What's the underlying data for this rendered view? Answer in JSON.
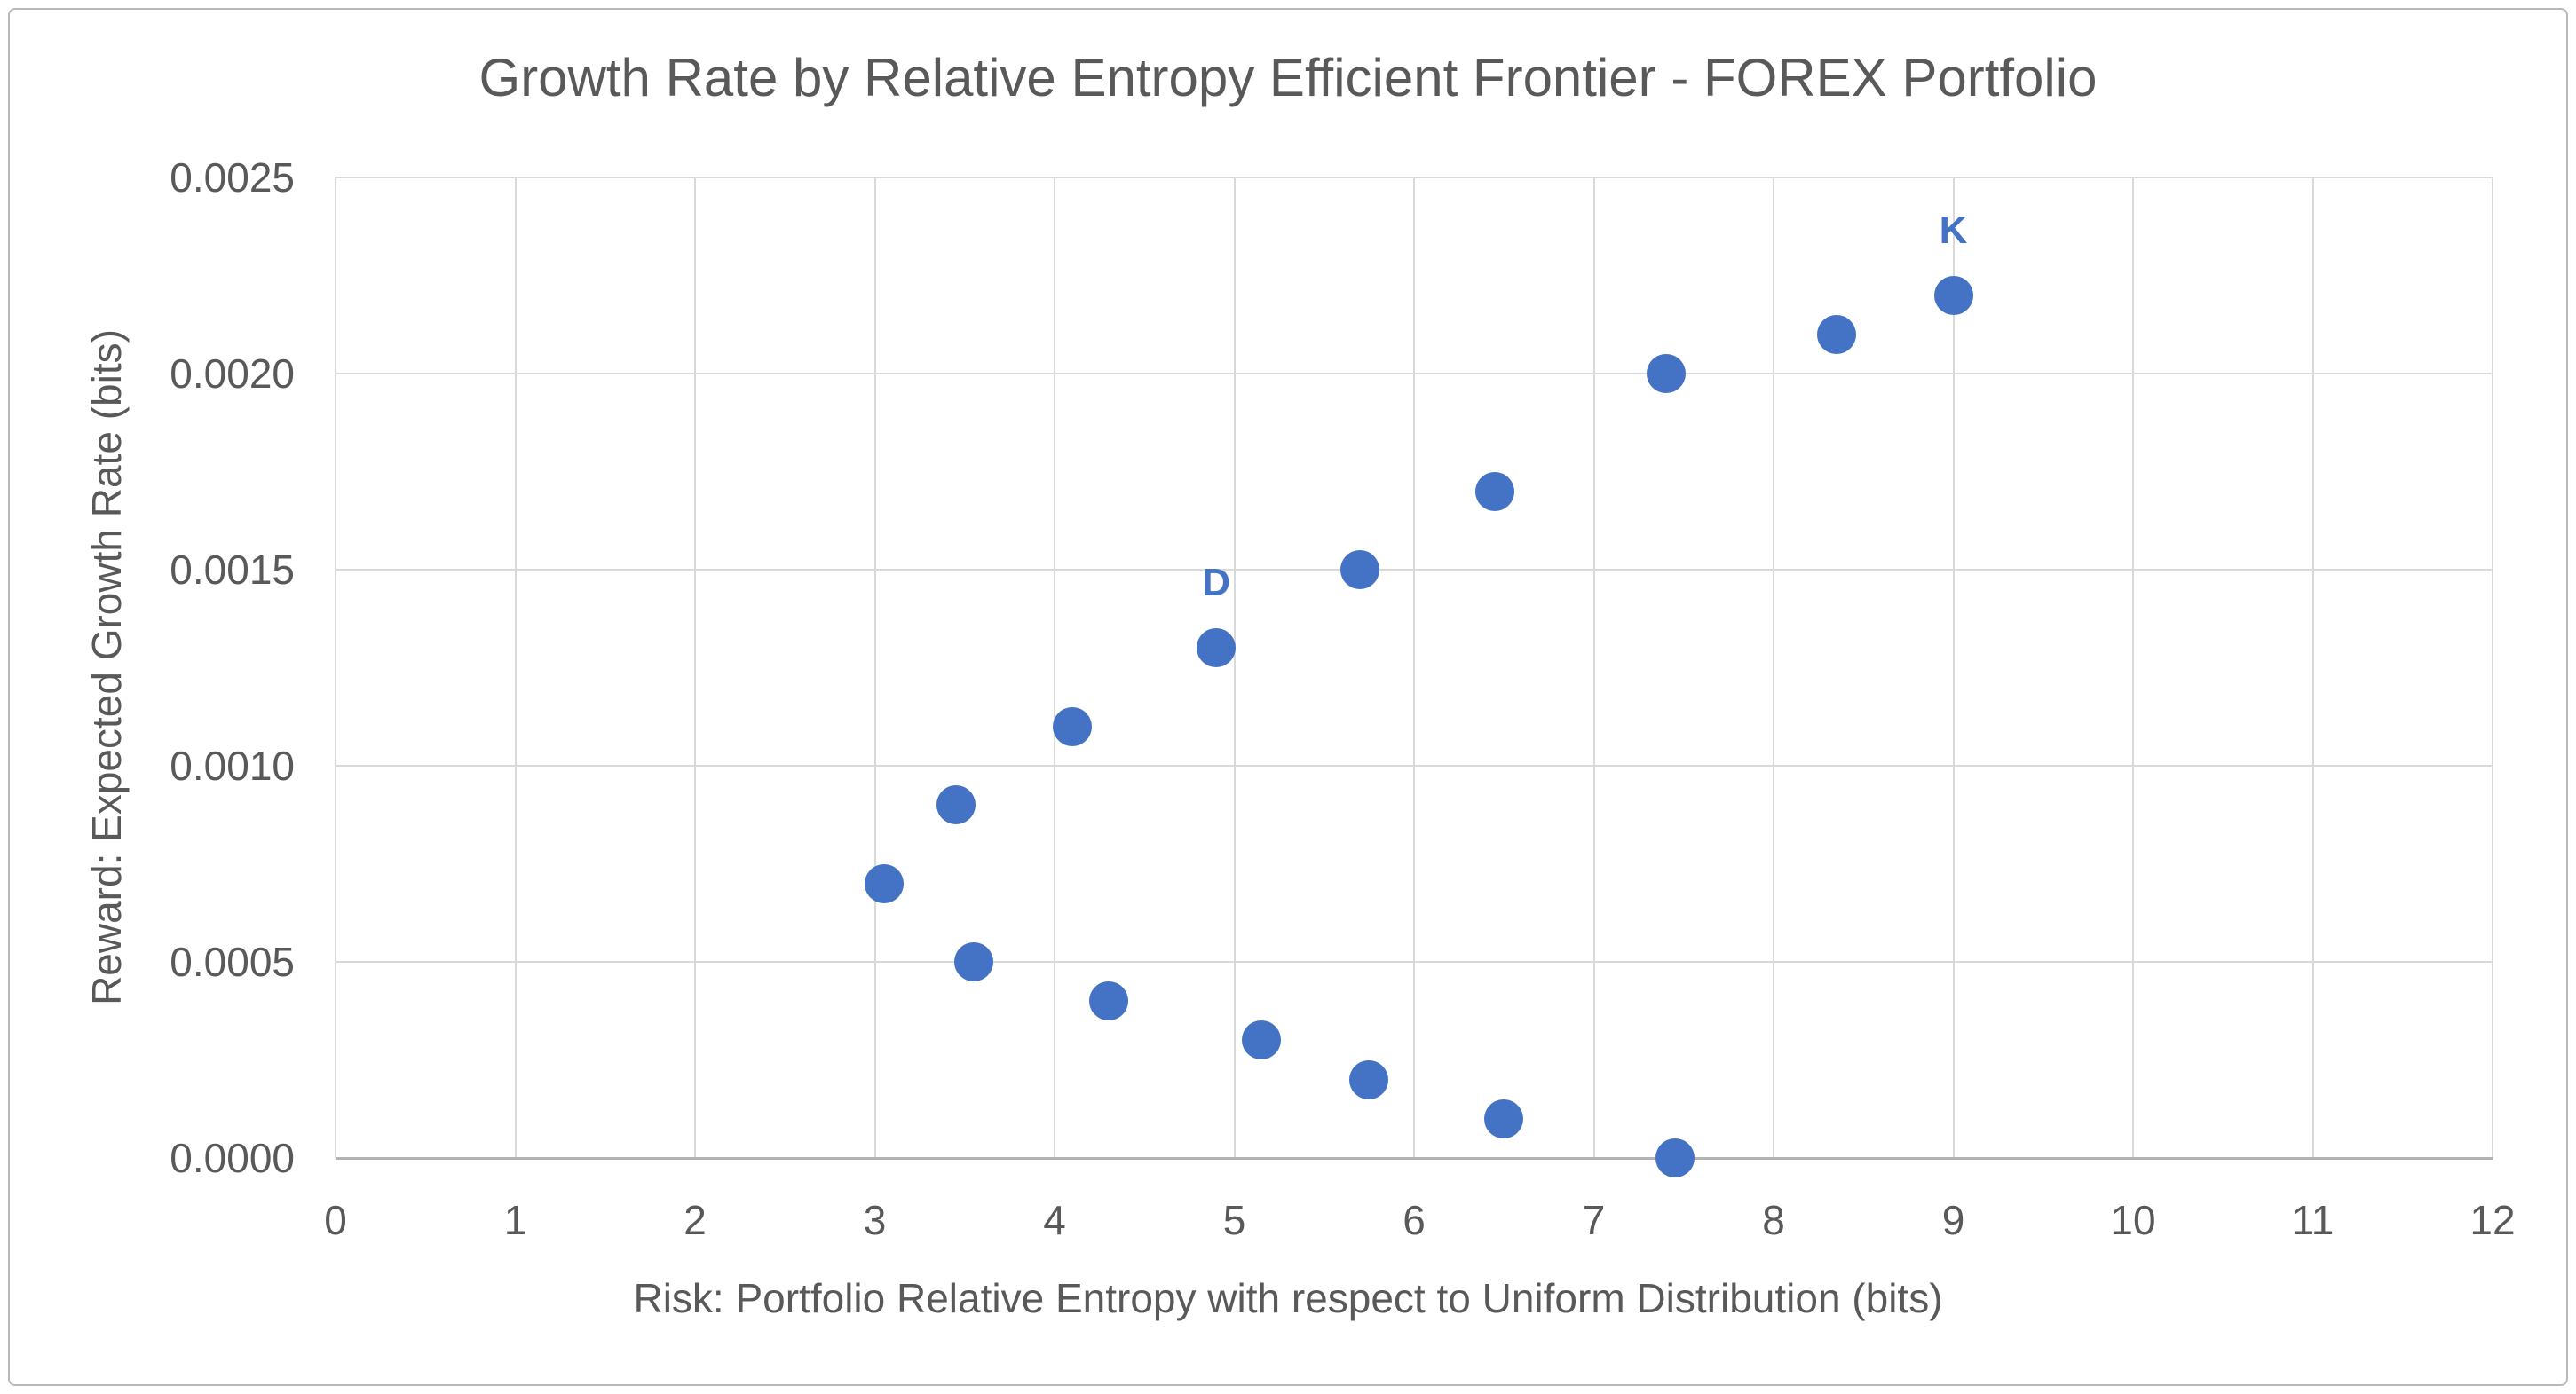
{
  "chart_data": {
    "type": "scatter",
    "title": "Growth Rate by Relative Entropy Efficient Frontier - FOREX Portfolio",
    "xlabel": "Risk: Portfolio Relative Entropy with respect to Uniform Distribution (bits)",
    "ylabel": "Reward: Expected Growth Rate (bits)",
    "xlim": [
      0,
      12
    ],
    "ylim": [
      0,
      0.0025
    ],
    "x_ticks": [
      0,
      1,
      2,
      3,
      4,
      5,
      6,
      7,
      8,
      9,
      10,
      11,
      12
    ],
    "y_ticks": [
      0,
      0.0005,
      0.001,
      0.0015,
      0.002,
      0.0025
    ],
    "y_tick_labels": [
      "0.0000",
      "0.0005",
      "0.0010",
      "0.0015",
      "0.0020",
      "0.0025"
    ],
    "grid": true,
    "legend": false,
    "series": [
      {
        "name": "efficient-frontier-points",
        "points": [
          {
            "x": 3.05,
            "y": 0.0007,
            "label": ""
          },
          {
            "x": 3.45,
            "y": 0.0009,
            "label": ""
          },
          {
            "x": 3.55,
            "y": 0.0005,
            "label": ""
          },
          {
            "x": 4.1,
            "y": 0.0011,
            "label": ""
          },
          {
            "x": 4.3,
            "y": 0.0004,
            "label": ""
          },
          {
            "x": 4.9,
            "y": 0.0013,
            "label": "D"
          },
          {
            "x": 5.15,
            "y": 0.0003,
            "label": ""
          },
          {
            "x": 5.7,
            "y": 0.0015,
            "label": ""
          },
          {
            "x": 5.75,
            "y": 0.0002,
            "label": ""
          },
          {
            "x": 6.45,
            "y": 0.0017,
            "label": ""
          },
          {
            "x": 6.5,
            "y": 0.0001,
            "label": ""
          },
          {
            "x": 7.4,
            "y": 0.002,
            "label": ""
          },
          {
            "x": 7.45,
            "y": 0.0,
            "label": ""
          },
          {
            "x": 8.35,
            "y": 0.0021,
            "label": ""
          },
          {
            "x": 9.0,
            "y": 0.0022,
            "label": "K"
          }
        ]
      }
    ]
  },
  "colors": {
    "marker": "#4472C4",
    "point_label": "#4472C4",
    "text": "#595959",
    "gridline": "#D9D9D9",
    "axis_line": "#B3B3B3",
    "frame_border": "#B9B9B9",
    "background": "#FFFFFF"
  }
}
